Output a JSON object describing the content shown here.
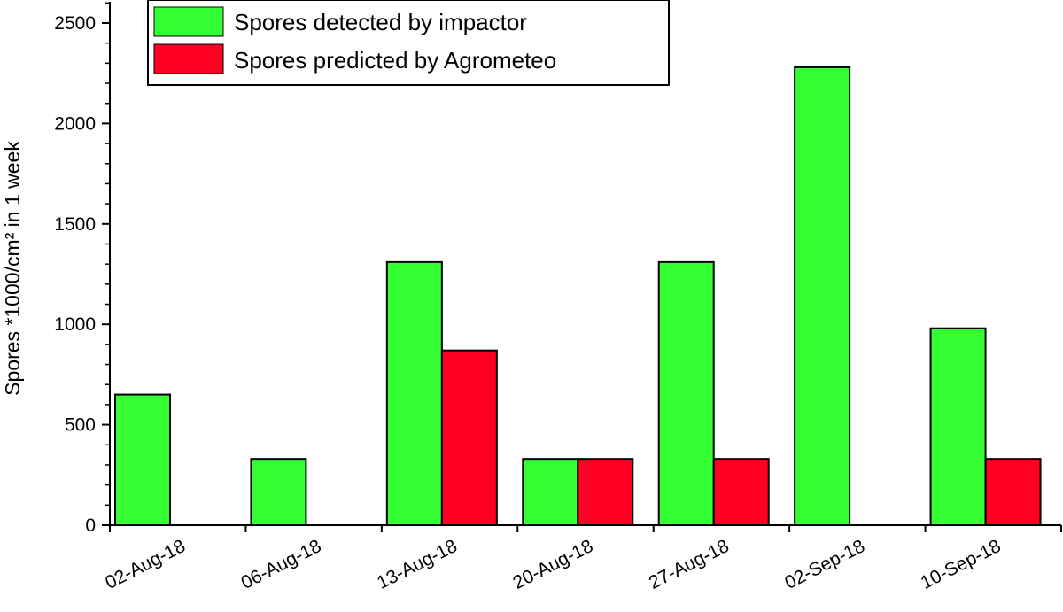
{
  "chart_data": {
    "type": "bar",
    "title": "",
    "xlabel": "",
    "ylabel": "Spores *1000/cm² in 1 week",
    "ylim": [
      0,
      2600
    ],
    "yticks": [
      0,
      500,
      1000,
      1500,
      2000,
      2500
    ],
    "grid": false,
    "legend_position": "top-left",
    "categories": [
      "02-Aug-18",
      "06-Aug-18",
      "13-Aug-18",
      "20-Aug-18",
      "27-Aug-18",
      "02-Sep-18",
      "10-Sep-18"
    ],
    "series": [
      {
        "name": "Spores detected by impactor",
        "color": "#33ff33",
        "values": [
          650,
          330,
          1310,
          330,
          1310,
          2280,
          980
        ]
      },
      {
        "name": "Spores predicted by Agrometeo",
        "color": "#ff0022",
        "values": [
          0,
          0,
          870,
          330,
          330,
          0,
          330
        ]
      }
    ]
  }
}
